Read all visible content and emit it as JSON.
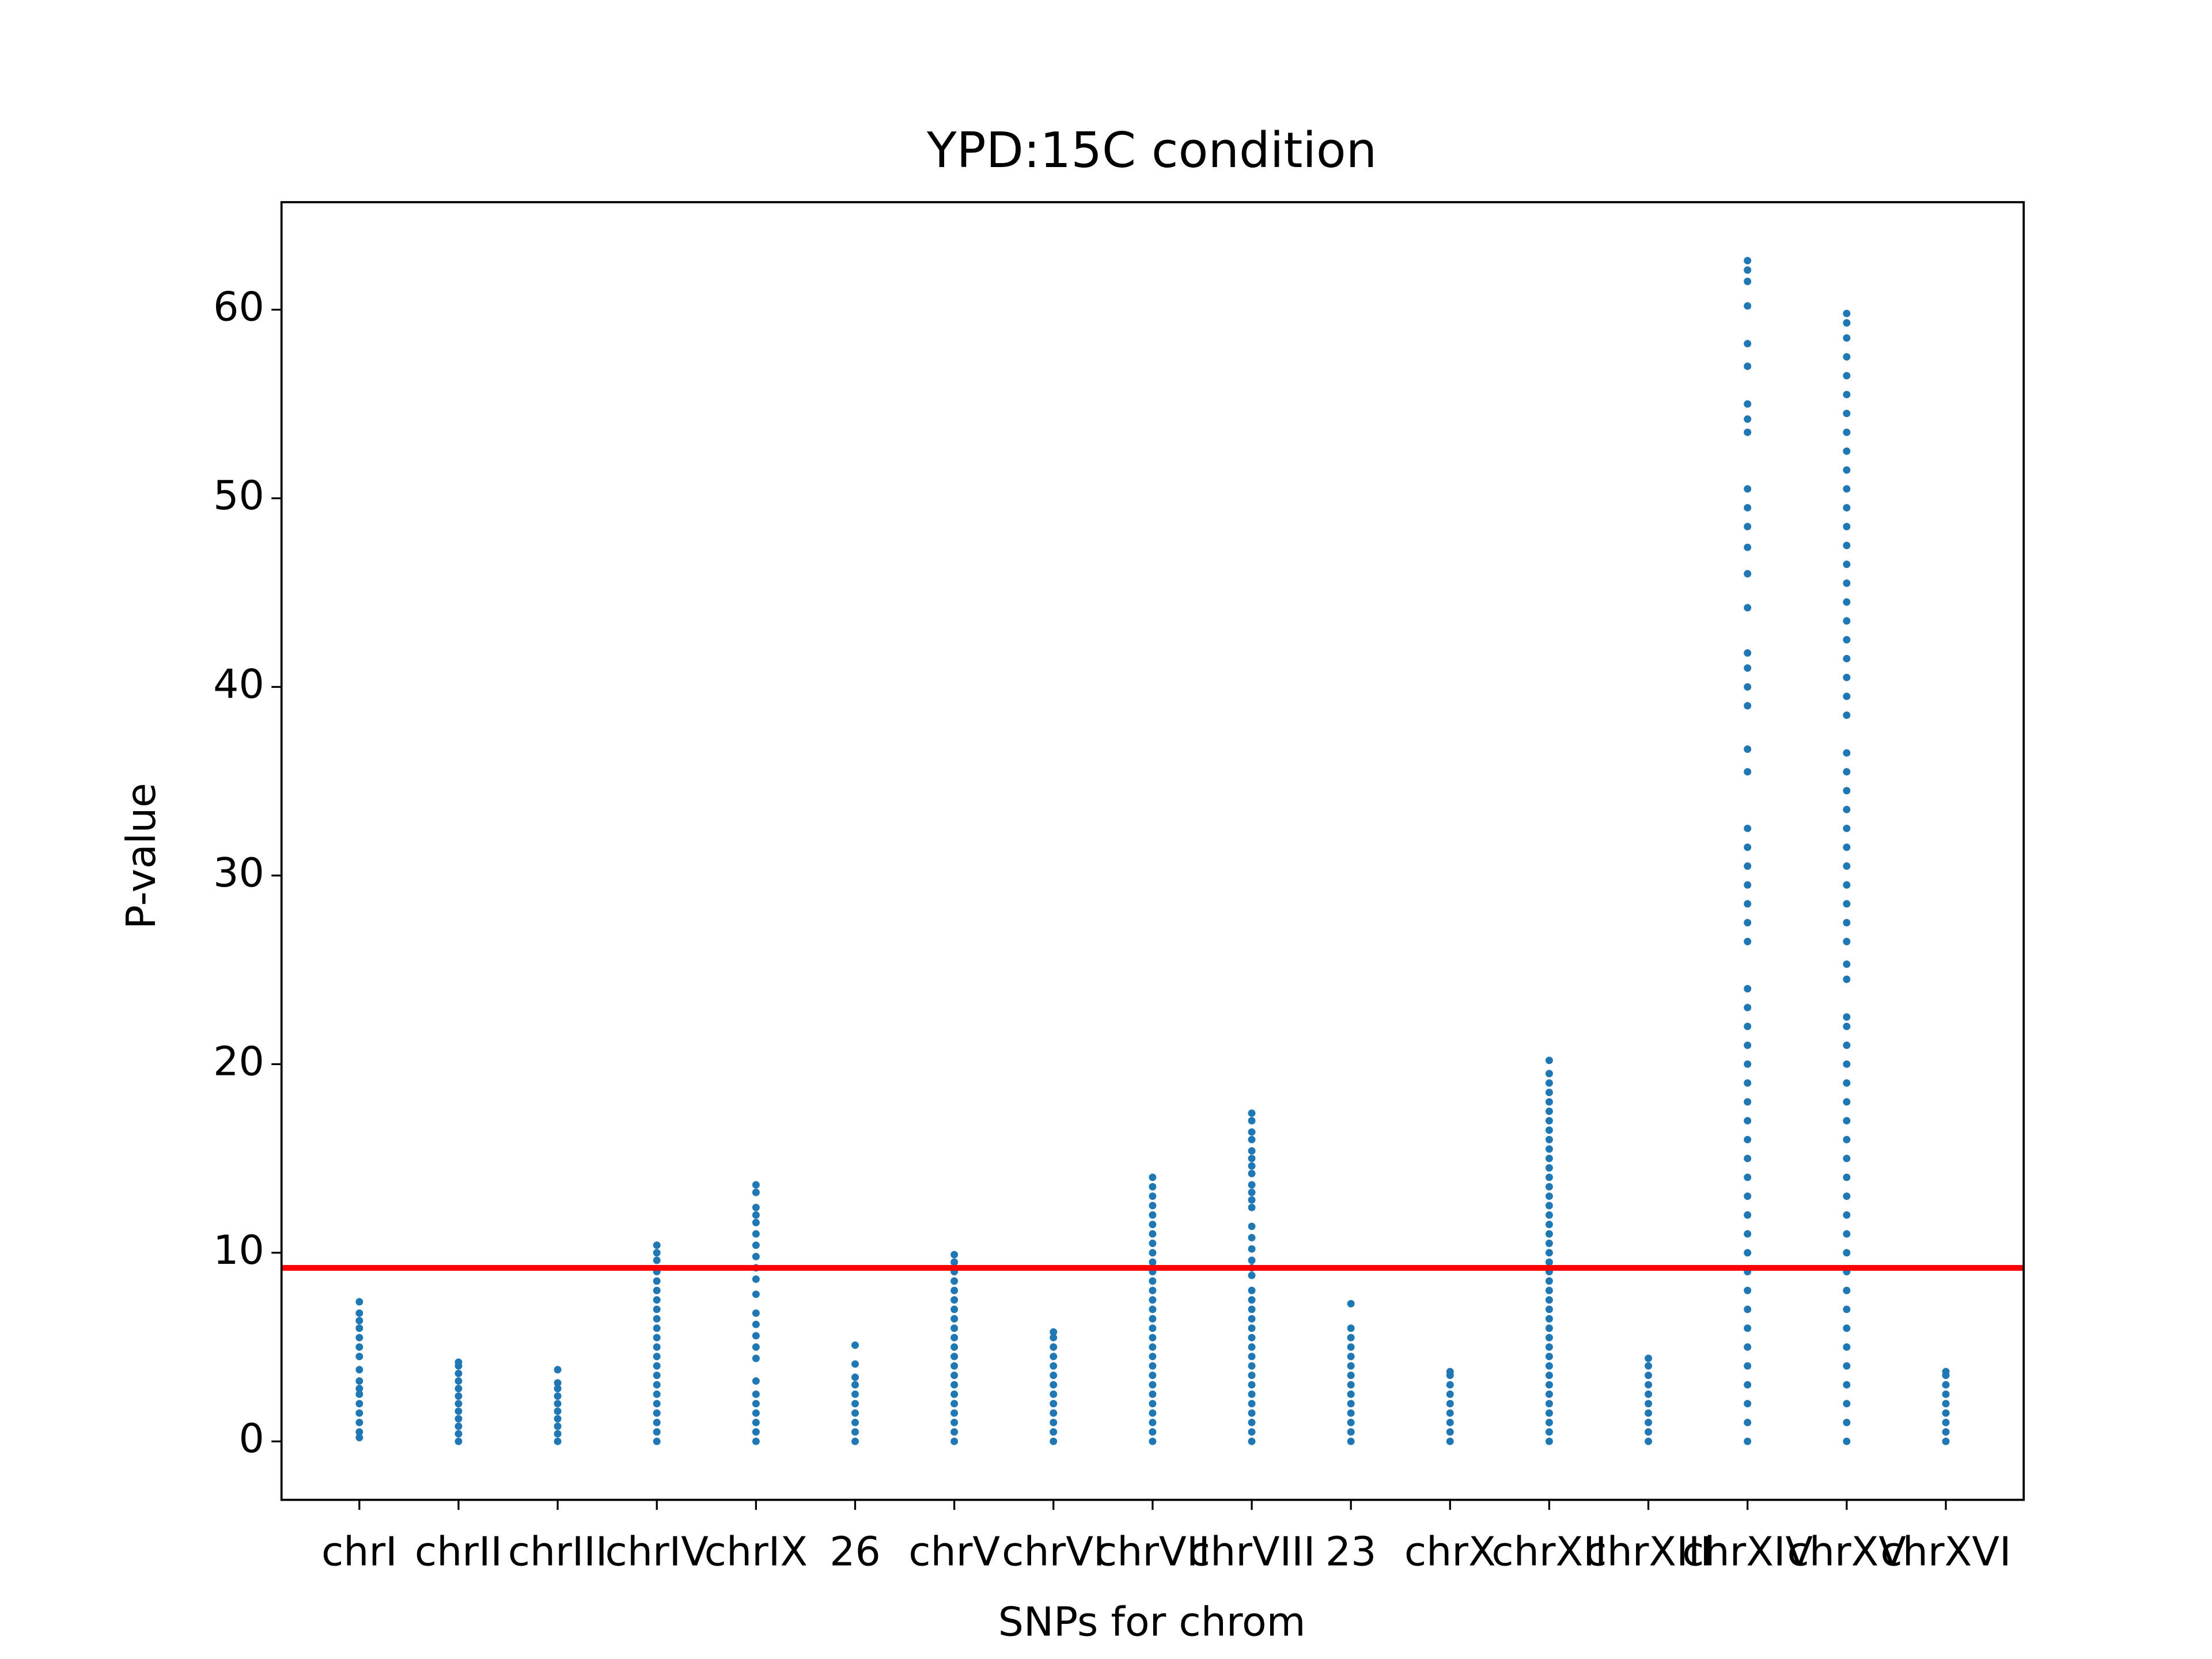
{
  "chart_data": {
    "type": "strip",
    "title": "YPD:15C condition",
    "xlabel": "SNPs for chrom",
    "ylabel": "P-value",
    "categories": [
      "chrI",
      "chrII",
      "chrIII",
      "chrIV",
      "chrIX",
      "26",
      "chrV",
      "chrVI",
      "chrVII",
      "chrVIII",
      "23",
      "chrX",
      "chrXII",
      "chrXIII",
      "chrXIV",
      "chrXV",
      "chrXVI"
    ],
    "values": [
      [
        0.2,
        0.5,
        1,
        1.5,
        2,
        2.5,
        2.8,
        3.2,
        3.8,
        4.5,
        5,
        5.5,
        6,
        6.4,
        6.8,
        7.4
      ],
      [
        0,
        0.4,
        0.8,
        1.2,
        1.6,
        2,
        2.4,
        2.8,
        3.2,
        3.6,
        4,
        4.2
      ],
      [
        0,
        0.4,
        0.8,
        1.2,
        1.6,
        2,
        2.4,
        2.8,
        3.1,
        3.8
      ],
      [
        0,
        0.5,
        1,
        1.5,
        2,
        2.5,
        3,
        3.5,
        4,
        4.5,
        5,
        5.5,
        6,
        6.5,
        7,
        7.5,
        8,
        8.5,
        9,
        9.6,
        10,
        10.4
      ],
      [
        0,
        0.5,
        1,
        1.5,
        2,
        2.5,
        3.2,
        4.4,
        5,
        5.6,
        6.2,
        6.8,
        7.8,
        8.6,
        9.2,
        9.8,
        10.4,
        11,
        11.6,
        12,
        12.4,
        13.2,
        13.6
      ],
      [
        0,
        0.5,
        1,
        1.5,
        2,
        2.5,
        3,
        3.4,
        4.1,
        5.1
      ],
      [
        0,
        0.5,
        1,
        1.5,
        2,
        2.5,
        3,
        3.5,
        4,
        4.5,
        5,
        5.5,
        6,
        6.5,
        7,
        7.5,
        8,
        8.5,
        9,
        9.5,
        9.9
      ],
      [
        0,
        0.5,
        1,
        1.5,
        2,
        2.5,
        3,
        3.5,
        4,
        4.5,
        5,
        5.5,
        5.8
      ],
      [
        0,
        0.5,
        1,
        1.5,
        2,
        2.5,
        3,
        3.5,
        4,
        4.5,
        5,
        5.5,
        6,
        6.5,
        7,
        7.5,
        8,
        8.5,
        9,
        9.5,
        10,
        10.5,
        11,
        11.5,
        12,
        12.5,
        13,
        13.5,
        14
      ],
      [
        0,
        0.5,
        1,
        1.5,
        2,
        2.5,
        3,
        3.5,
        4,
        4.5,
        5,
        5.5,
        6,
        6.5,
        7,
        7.5,
        8,
        8.8,
        9.2,
        9.6,
        10.2,
        10.8,
        11.4,
        12.4,
        12.8,
        13.2,
        13.6,
        14.2,
        14.6,
        15,
        15.4,
        16,
        16.4,
        17,
        17.4
      ],
      [
        0,
        0.5,
        1,
        1.5,
        2,
        2.5,
        3,
        3.5,
        4,
        4.5,
        5,
        5.5,
        6,
        7.3
      ],
      [
        0,
        0.5,
        1,
        1.5,
        2,
        2.5,
        3,
        3.5,
        3.7
      ],
      [
        0,
        0.5,
        1,
        1.5,
        2,
        2.5,
        3,
        3.5,
        4,
        4.5,
        5,
        5.5,
        6,
        6.5,
        7,
        7.5,
        8,
        8.5,
        9,
        9.5,
        10,
        10.5,
        11,
        11.5,
        12,
        12.5,
        13,
        13.5,
        14,
        14.5,
        15,
        15.5,
        16,
        16.5,
        17,
        17.5,
        18,
        18.5,
        19,
        19.5,
        20.2
      ],
      [
        0,
        0.5,
        1,
        1.5,
        2,
        2.5,
        3,
        3.5,
        4,
        4.4
      ],
      [
        0,
        1,
        2,
        3,
        4,
        5,
        6,
        7,
        8,
        9,
        10,
        11,
        12,
        13,
        14,
        15,
        16,
        17,
        18,
        19,
        20,
        21,
        22,
        23,
        24,
        26.5,
        27.5,
        28.5,
        29.5,
        30.5,
        31.5,
        32.5,
        35.5,
        36.7,
        39,
        40,
        41,
        41.8,
        44.2,
        46,
        47.4,
        48.5,
        49.5,
        50.5,
        53.5,
        54.2,
        55,
        57,
        58.2,
        60.2,
        61.5,
        62.1,
        62.6
      ],
      [
        0,
        1,
        2,
        3,
        4,
        5,
        6,
        7,
        8,
        9,
        10,
        11,
        12,
        13,
        14,
        15,
        16,
        17,
        18,
        19,
        20,
        21,
        22,
        22.5,
        24.5,
        25.3,
        26.5,
        27.5,
        28.5,
        29.5,
        30.5,
        31.5,
        32.5,
        33.5,
        34.5,
        35.5,
        36.5,
        38.5,
        39.5,
        40.5,
        41.5,
        42.5,
        43.5,
        44.5,
        45.5,
        46.5,
        47.5,
        48.5,
        49.5,
        50.5,
        51.5,
        52.5,
        53.5,
        54.5,
        55.5,
        56.5,
        57.5,
        58.5,
        59.3,
        59.8
      ],
      [
        0,
        0.5,
        1,
        1.5,
        2,
        2.5,
        3,
        3.5,
        3.7
      ]
    ],
    "color": "#1f77b4",
    "ylim": [
      -3.1,
      65.7
    ],
    "yticks": [
      0,
      10,
      20,
      30,
      40,
      50,
      60
    ],
    "threshold": {
      "value": 9.2,
      "color": "#ff0000"
    }
  }
}
